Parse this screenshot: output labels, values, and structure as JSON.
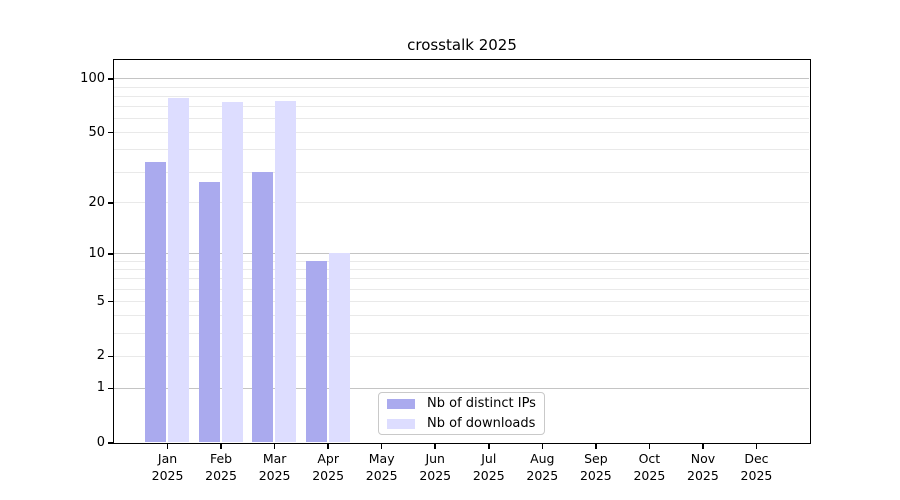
{
  "chart_data": {
    "type": "bar",
    "title": "crosstalk 2025",
    "months": [
      "Jan",
      "Feb",
      "Mar",
      "Apr",
      "May",
      "Jun",
      "Jul",
      "Aug",
      "Sep",
      "Oct",
      "Nov",
      "Dec"
    ],
    "year": "2025",
    "series": [
      {
        "name": "Nb of distinct IPs",
        "color": "#aaaaee",
        "values": [
          34,
          26,
          30,
          9,
          0,
          0,
          0,
          0,
          0,
          0,
          0,
          0
        ]
      },
      {
        "name": "Nb of downloads",
        "color": "#ddddff",
        "values": [
          78,
          74,
          75,
          10,
          0,
          0,
          0,
          0,
          0,
          0,
          0,
          0
        ]
      }
    ],
    "y_axis": {
      "scale": "log10(1+v)",
      "tick_labels": [
        100,
        50,
        20,
        10,
        5,
        2,
        1,
        0
      ],
      "major_gridlines": [
        1,
        10,
        100
      ],
      "minor_gridlines": [
        2,
        3,
        4,
        5,
        6,
        7,
        8,
        9,
        20,
        30,
        40,
        50,
        60,
        70,
        80,
        90
      ],
      "ylim": [
        0,
        127
      ]
    },
    "grid": true,
    "legend_position": "lower-center-inside",
    "xlabel": "",
    "ylabel": ""
  },
  "style": {
    "grid_minor_color": "#e9e9e9",
    "grid_major_color": "#c4c4c4",
    "axis_color": "#000000",
    "background_color": "#ffffff"
  }
}
